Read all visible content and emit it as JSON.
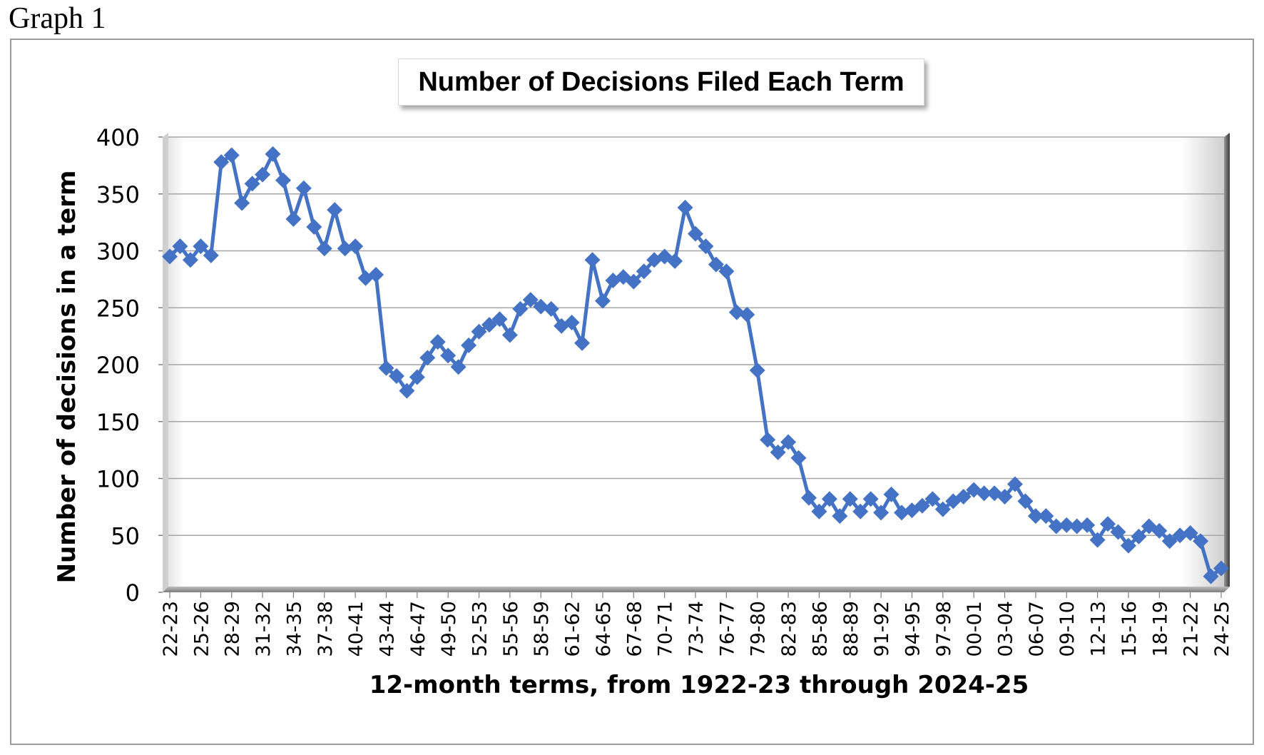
{
  "caption": "Graph 1",
  "chart_data": {
    "type": "line",
    "title": "Number of Decisions Filed Each Term",
    "xlabel": "12-month terms, from 1922-23 through 2024-25",
    "ylabel": "Number of decisions in a term",
    "ylim": [
      0,
      400
    ],
    "yticks": [
      0,
      50,
      100,
      150,
      200,
      250,
      300,
      350,
      400
    ],
    "grid": true,
    "legend": "none",
    "line_color": "#4472C4",
    "marker": "diamond",
    "x_tick_labels": [
      "22-23",
      "25-26",
      "28-29",
      "31-32",
      "34-35",
      "37-38",
      "40-41",
      "43-44",
      "46-47",
      "49-50",
      "52-53",
      "55-56",
      "58-59",
      "61-62",
      "64-65",
      "67-68",
      "70-71",
      "73-74",
      "76-77",
      "79-80",
      "82-83",
      "85-86",
      "88-89",
      "91-92",
      "94-95",
      "97-98",
      "00-01",
      "03-04",
      "06-07",
      "09-10",
      "12-13",
      "15-16",
      "18-19",
      "21-22",
      "24-25"
    ],
    "x_tick_every": 3,
    "categories": [
      "22-23",
      "23-24",
      "24-25",
      "25-26",
      "26-27",
      "27-28",
      "28-29",
      "29-30",
      "30-31",
      "31-32",
      "32-33",
      "33-34",
      "34-35",
      "35-36",
      "36-37",
      "37-38",
      "38-39",
      "39-40",
      "40-41",
      "41-42",
      "42-43",
      "43-44",
      "44-45",
      "45-46",
      "46-47",
      "47-48",
      "48-49",
      "49-50",
      "50-51",
      "51-52",
      "52-53",
      "53-54",
      "54-55",
      "55-56",
      "56-57",
      "57-58",
      "58-59",
      "59-60",
      "60-61",
      "61-62",
      "62-63",
      "63-64",
      "64-65",
      "65-66",
      "66-67",
      "67-68",
      "68-69",
      "69-70",
      "70-71",
      "71-72",
      "72-73",
      "73-74",
      "74-75",
      "75-76",
      "76-77",
      "77-78",
      "78-79",
      "79-80",
      "80-81",
      "81-82",
      "82-83",
      "83-84",
      "84-85",
      "85-86",
      "86-87",
      "87-88",
      "88-89",
      "89-90",
      "90-91",
      "91-92",
      "92-93",
      "93-94",
      "94-95",
      "95-96",
      "96-97",
      "97-98",
      "98-99",
      "99-00",
      "00-01",
      "01-02",
      "02-03",
      "03-04",
      "04-05",
      "05-06",
      "06-07",
      "07-08",
      "08-09",
      "09-10",
      "10-11",
      "11-12",
      "12-13",
      "13-14",
      "14-15",
      "15-16",
      "16-17",
      "17-18",
      "18-19",
      "19-20",
      "20-21",
      "21-22",
      "22-23",
      "23-24",
      "24-25"
    ],
    "values": [
      295,
      304,
      292,
      304,
      296,
      378,
      384,
      342,
      359,
      367,
      385,
      362,
      328,
      355,
      321,
      302,
      336,
      302,
      304,
      276,
      279,
      197,
      190,
      177,
      189,
      206,
      220,
      208,
      198,
      217,
      229,
      235,
      240,
      226,
      249,
      257,
      251,
      249,
      234,
      237,
      219,
      292,
      256,
      274,
      277,
      273,
      282,
      292,
      295,
      291,
      338,
      315,
      304,
      288,
      282,
      246,
      244,
      195,
      134,
      123,
      132,
      118,
      83,
      71,
      82,
      67,
      82,
      71,
      82,
      70,
      86,
      70,
      72,
      76,
      82,
      73,
      80,
      84,
      90,
      87,
      87,
      84,
      95,
      80,
      67,
      67,
      58,
      59,
      58,
      59,
      46,
      60,
      53,
      41,
      49,
      58,
      54,
      45,
      50,
      52,
      45,
      14,
      21
    ]
  }
}
